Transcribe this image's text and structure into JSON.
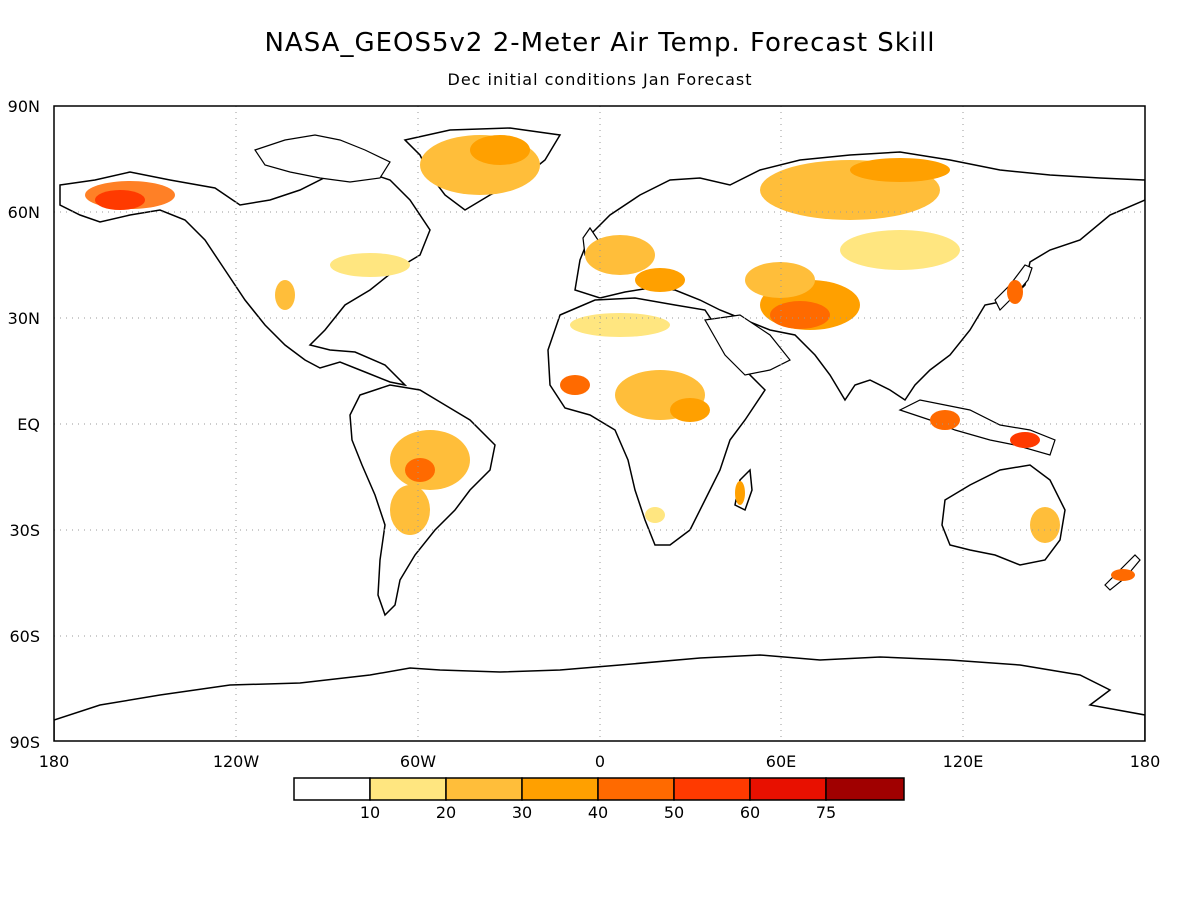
{
  "title": "NASA_GEOS5v2 2-Meter Air Temp. Forecast Skill",
  "subtitle": "Dec initial conditions  Jan Forecast",
  "map": {
    "lat_ticks": [
      "90N",
      "60N",
      "30N",
      "EQ",
      "30S",
      "60S",
      "90S"
    ],
    "lon_ticks": [
      "180",
      "120W",
      "60W",
      "0",
      "60E",
      "120E",
      "180"
    ],
    "grid": "dotted"
  },
  "colorbar": {
    "colors": [
      "#ffffff",
      "#ffe680",
      "#ffbe3a",
      "#ffa000",
      "#ff6a00",
      "#ff3a00",
      "#e81000",
      "#a00000"
    ],
    "labels": [
      "10",
      "20",
      "30",
      "40",
      "50",
      "60",
      "75"
    ]
  }
}
